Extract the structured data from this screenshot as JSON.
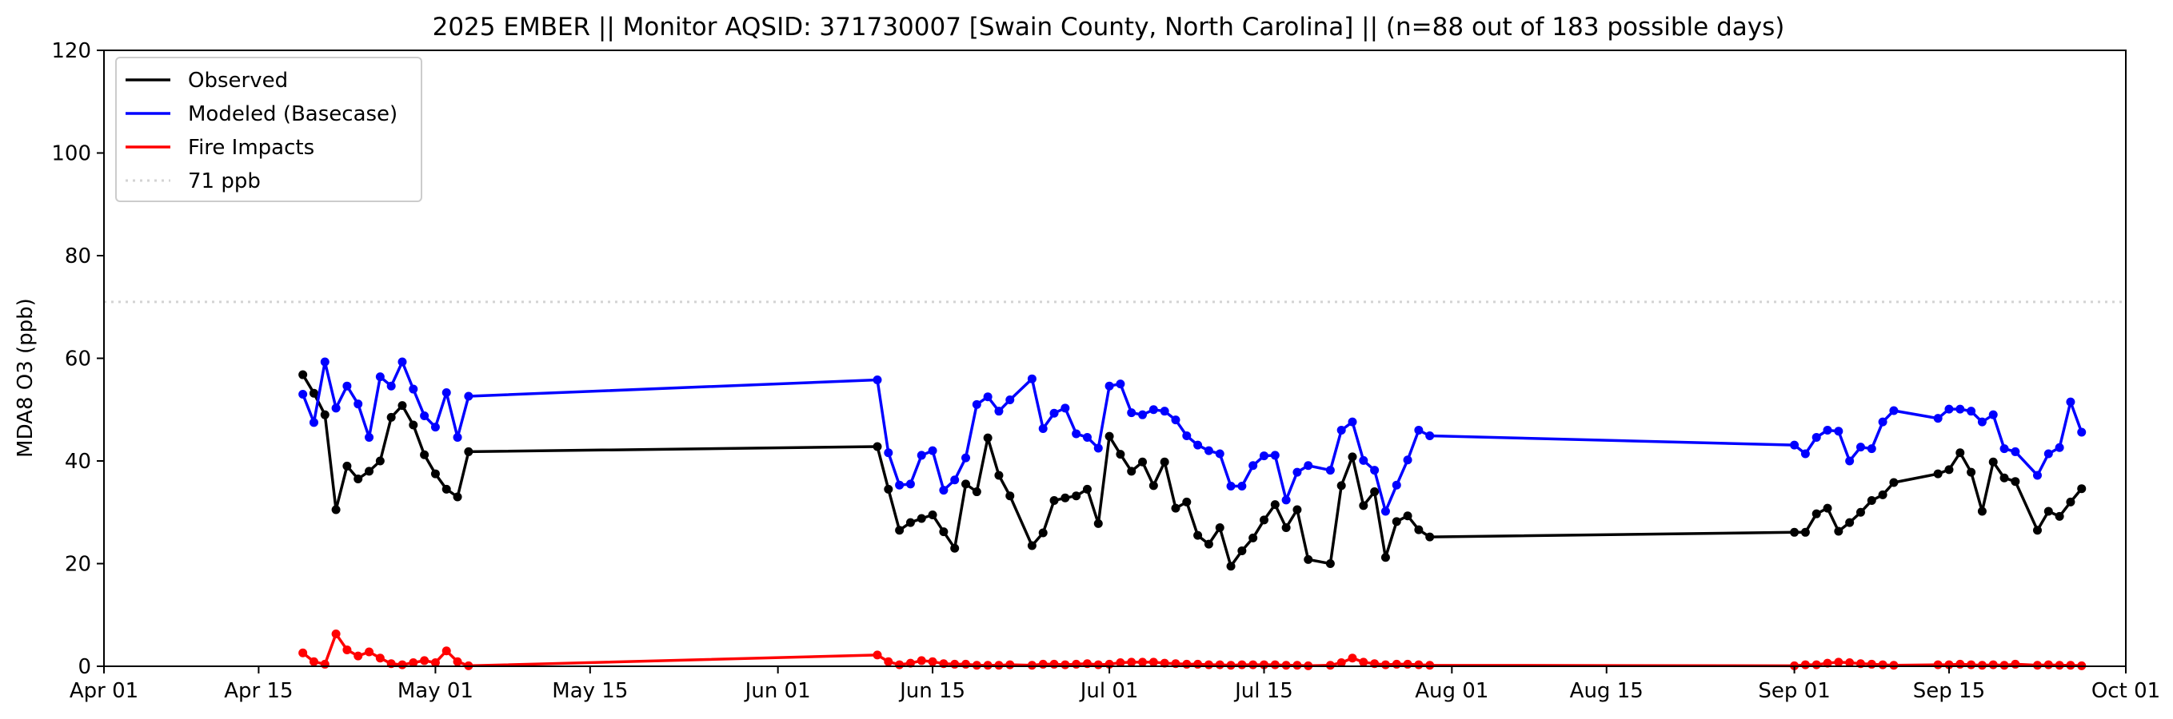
{
  "chart_data": {
    "type": "line",
    "title": "2025 EMBER || Monitor AQSID: 371730007 [Swain County, North Carolina] || (n=88 out of 183 possible days)",
    "xlabel": "",
    "ylabel": "MDA8 O3 (ppb)",
    "xlim": [
      "2025-04-01",
      "2025-10-01"
    ],
    "ylim": [
      0,
      120
    ],
    "x_tick_labels": [
      "Apr 01",
      "Apr 15",
      "May 01",
      "May 15",
      "Jun 01",
      "Jun 15",
      "Jul 01",
      "Jul 15",
      "Aug 01",
      "Aug 15",
      "Sep 01",
      "Sep 15",
      "Oct 01"
    ],
    "x_tick_dates": [
      "2025-04-01",
      "2025-04-15",
      "2025-05-01",
      "2025-05-15",
      "2025-06-01",
      "2025-06-15",
      "2025-07-01",
      "2025-07-15",
      "2025-08-01",
      "2025-08-15",
      "2025-09-01",
      "2025-09-15",
      "2025-10-01"
    ],
    "y_ticks": [
      0,
      20,
      40,
      60,
      80,
      100,
      120
    ],
    "grid": false,
    "legend_position": "top-left",
    "reference_line": {
      "y": 71,
      "label": "71 ppb",
      "color": "#d3d3d3",
      "style": "dotted"
    },
    "series": [
      {
        "name": "Observed",
        "color": "#000000",
        "points": [
          [
            "2025-04-19",
            56.8
          ],
          [
            "2025-04-20",
            53.2
          ],
          [
            "2025-04-21",
            49.0
          ],
          [
            "2025-04-22",
            30.5
          ],
          [
            "2025-04-23",
            39.0
          ],
          [
            "2025-04-24",
            36.5
          ],
          [
            "2025-04-25",
            38.0
          ],
          [
            "2025-04-26",
            40.0
          ],
          [
            "2025-04-27",
            48.5
          ],
          [
            "2025-04-28",
            50.8
          ],
          [
            "2025-04-29",
            47.0
          ],
          [
            "2025-04-30",
            41.2
          ],
          [
            "2025-05-01",
            37.5
          ],
          [
            "2025-05-02",
            34.5
          ],
          [
            "2025-05-03",
            33.0
          ],
          [
            "2025-05-04",
            41.8
          ],
          [
            "2025-06-10",
            42.8
          ],
          [
            "2025-06-11",
            34.5
          ],
          [
            "2025-06-12",
            26.5
          ],
          [
            "2025-06-13",
            28.0
          ],
          [
            "2025-06-14",
            28.8
          ],
          [
            "2025-06-15",
            29.5
          ],
          [
            "2025-06-16",
            26.2
          ],
          [
            "2025-06-17",
            23.0
          ],
          [
            "2025-06-18",
            35.5
          ],
          [
            "2025-06-19",
            34.0
          ],
          [
            "2025-06-20",
            44.5
          ],
          [
            "2025-06-21",
            37.2
          ],
          [
            "2025-06-22",
            33.2
          ],
          [
            "2025-06-24",
            23.5
          ],
          [
            "2025-06-25",
            26.0
          ],
          [
            "2025-06-26",
            32.3
          ],
          [
            "2025-06-27",
            32.8
          ],
          [
            "2025-06-28",
            33.2
          ],
          [
            "2025-06-29",
            34.5
          ],
          [
            "2025-06-30",
            27.8
          ],
          [
            "2025-07-01",
            44.8
          ],
          [
            "2025-07-02",
            41.3
          ],
          [
            "2025-07-03",
            38.0
          ],
          [
            "2025-07-04",
            39.8
          ],
          [
            "2025-07-05",
            35.2
          ],
          [
            "2025-07-06",
            39.8
          ],
          [
            "2025-07-07",
            30.8
          ],
          [
            "2025-07-08",
            32.0
          ],
          [
            "2025-07-09",
            25.5
          ],
          [
            "2025-07-10",
            23.8
          ],
          [
            "2025-07-11",
            27.0
          ],
          [
            "2025-07-12",
            19.5
          ],
          [
            "2025-07-13",
            22.5
          ],
          [
            "2025-07-14",
            25.0
          ],
          [
            "2025-07-15",
            28.5
          ],
          [
            "2025-07-16",
            31.5
          ],
          [
            "2025-07-17",
            27.0
          ],
          [
            "2025-07-18",
            30.5
          ],
          [
            "2025-07-19",
            20.8
          ],
          [
            "2025-07-21",
            20.0
          ],
          [
            "2025-07-22",
            35.2
          ],
          [
            "2025-07-23",
            40.8
          ],
          [
            "2025-07-24",
            31.3
          ],
          [
            "2025-07-25",
            34.0
          ],
          [
            "2025-07-26",
            21.2
          ],
          [
            "2025-07-27",
            28.2
          ],
          [
            "2025-07-28",
            29.3
          ],
          [
            "2025-07-29",
            26.6
          ],
          [
            "2025-07-30",
            25.2
          ],
          [
            "2025-09-01",
            26.1
          ],
          [
            "2025-09-02",
            26.1
          ],
          [
            "2025-09-03",
            29.7
          ],
          [
            "2025-09-04",
            30.8
          ],
          [
            "2025-09-05",
            26.3
          ],
          [
            "2025-09-06",
            28.0
          ],
          [
            "2025-09-07",
            30.0
          ],
          [
            "2025-09-08",
            32.3
          ],
          [
            "2025-09-09",
            33.4
          ],
          [
            "2025-09-10",
            35.8
          ],
          [
            "2025-09-14",
            37.5
          ],
          [
            "2025-09-15",
            38.3
          ],
          [
            "2025-09-16",
            41.6
          ],
          [
            "2025-09-17",
            37.8
          ],
          [
            "2025-09-18",
            30.2
          ],
          [
            "2025-09-19",
            39.8
          ],
          [
            "2025-09-20",
            36.7
          ],
          [
            "2025-09-21",
            36.0
          ],
          [
            "2025-09-23",
            26.5
          ],
          [
            "2025-09-24",
            30.2
          ],
          [
            "2025-09-25",
            29.2
          ],
          [
            "2025-09-26",
            32.0
          ],
          [
            "2025-09-27",
            34.6
          ]
        ]
      },
      {
        "name": "Modeled (Basecase)",
        "color": "#0000ff",
        "points": [
          [
            "2025-04-19",
            53.0
          ],
          [
            "2025-04-20",
            47.5
          ],
          [
            "2025-04-21",
            59.3
          ],
          [
            "2025-04-22",
            50.3
          ],
          [
            "2025-04-23",
            54.6
          ],
          [
            "2025-04-24",
            51.1
          ],
          [
            "2025-04-25",
            44.6
          ],
          [
            "2025-04-26",
            56.4
          ],
          [
            "2025-04-27",
            54.6
          ],
          [
            "2025-04-28",
            59.3
          ],
          [
            "2025-04-29",
            54.0
          ],
          [
            "2025-04-30",
            48.8
          ],
          [
            "2025-05-01",
            46.6
          ],
          [
            "2025-05-02",
            53.3
          ],
          [
            "2025-05-03",
            44.6
          ],
          [
            "2025-05-04",
            52.6
          ],
          [
            "2025-06-10",
            55.8
          ],
          [
            "2025-06-11",
            41.6
          ],
          [
            "2025-06-12",
            35.3
          ],
          [
            "2025-06-13",
            35.5
          ],
          [
            "2025-06-14",
            41.1
          ],
          [
            "2025-06-15",
            42.0
          ],
          [
            "2025-06-16",
            34.3
          ],
          [
            "2025-06-17",
            36.3
          ],
          [
            "2025-06-18",
            40.6
          ],
          [
            "2025-06-19",
            51.0
          ],
          [
            "2025-06-20",
            52.5
          ],
          [
            "2025-06-21",
            49.7
          ],
          [
            "2025-06-22",
            51.9
          ],
          [
            "2025-06-24",
            56.0
          ],
          [
            "2025-06-25",
            46.3
          ],
          [
            "2025-06-26",
            49.3
          ],
          [
            "2025-06-27",
            50.3
          ],
          [
            "2025-06-28",
            45.3
          ],
          [
            "2025-06-29",
            44.6
          ],
          [
            "2025-06-30",
            42.5
          ],
          [
            "2025-07-01",
            54.6
          ],
          [
            "2025-07-02",
            55.0
          ],
          [
            "2025-07-03",
            49.4
          ],
          [
            "2025-07-04",
            49.0
          ],
          [
            "2025-07-05",
            50.0
          ],
          [
            "2025-07-06",
            49.7
          ],
          [
            "2025-07-07",
            48.0
          ],
          [
            "2025-07-08",
            44.9
          ],
          [
            "2025-07-09",
            43.1
          ],
          [
            "2025-07-10",
            42.0
          ],
          [
            "2025-07-11",
            41.4
          ],
          [
            "2025-07-12",
            35.1
          ],
          [
            "2025-07-13",
            35.1
          ],
          [
            "2025-07-14",
            39.1
          ],
          [
            "2025-07-15",
            41.0
          ],
          [
            "2025-07-16",
            41.1
          ],
          [
            "2025-07-17",
            32.4
          ],
          [
            "2025-07-18",
            37.8
          ],
          [
            "2025-07-19",
            39.1
          ],
          [
            "2025-07-21",
            38.2
          ],
          [
            "2025-07-22",
            46.0
          ],
          [
            "2025-07-23",
            47.6
          ],
          [
            "2025-07-24",
            40.1
          ],
          [
            "2025-07-25",
            38.2
          ],
          [
            "2025-07-26",
            30.2
          ],
          [
            "2025-07-27",
            35.3
          ],
          [
            "2025-07-28",
            40.2
          ],
          [
            "2025-07-29",
            46.0
          ],
          [
            "2025-07-30",
            44.9
          ],
          [
            "2025-09-01",
            43.1
          ],
          [
            "2025-09-02",
            41.4
          ],
          [
            "2025-09-03",
            44.6
          ],
          [
            "2025-09-04",
            46.0
          ],
          [
            "2025-09-05",
            45.8
          ],
          [
            "2025-09-06",
            40.0
          ],
          [
            "2025-09-07",
            42.7
          ],
          [
            "2025-09-08",
            42.4
          ],
          [
            "2025-09-09",
            47.6
          ],
          [
            "2025-09-10",
            49.8
          ],
          [
            "2025-09-14",
            48.3
          ],
          [
            "2025-09-15",
            50.1
          ],
          [
            "2025-09-16",
            50.1
          ],
          [
            "2025-09-17",
            49.7
          ],
          [
            "2025-09-18",
            47.6
          ],
          [
            "2025-09-19",
            49.0
          ],
          [
            "2025-09-20",
            42.4
          ],
          [
            "2025-09-21",
            41.8
          ],
          [
            "2025-09-23",
            37.2
          ],
          [
            "2025-09-24",
            41.4
          ],
          [
            "2025-09-25",
            42.6
          ],
          [
            "2025-09-26",
            51.5
          ],
          [
            "2025-09-27",
            45.6
          ]
        ]
      },
      {
        "name": "Fire Impacts",
        "color": "#ff0000",
        "points": [
          [
            "2025-04-19",
            2.6
          ],
          [
            "2025-04-20",
            0.9
          ],
          [
            "2025-04-21",
            0.4
          ],
          [
            "2025-04-22",
            6.3
          ],
          [
            "2025-04-23",
            3.2
          ],
          [
            "2025-04-24",
            2.0
          ],
          [
            "2025-04-25",
            2.8
          ],
          [
            "2025-04-26",
            1.6
          ],
          [
            "2025-04-27",
            0.5
          ],
          [
            "2025-04-28",
            0.3
          ],
          [
            "2025-04-29",
            0.7
          ],
          [
            "2025-04-30",
            1.1
          ],
          [
            "2025-05-01",
            0.7
          ],
          [
            "2025-05-02",
            3.0
          ],
          [
            "2025-05-03",
            0.9
          ],
          [
            "2025-05-04",
            0.1
          ],
          [
            "2025-06-10",
            2.2
          ],
          [
            "2025-06-11",
            0.9
          ],
          [
            "2025-06-12",
            0.3
          ],
          [
            "2025-06-13",
            0.6
          ],
          [
            "2025-06-14",
            1.1
          ],
          [
            "2025-06-15",
            0.9
          ],
          [
            "2025-06-16",
            0.5
          ],
          [
            "2025-06-17",
            0.4
          ],
          [
            "2025-06-18",
            0.4
          ],
          [
            "2025-06-19",
            0.2
          ],
          [
            "2025-06-20",
            0.2
          ],
          [
            "2025-06-21",
            0.2
          ],
          [
            "2025-06-22",
            0.3
          ],
          [
            "2025-06-24",
            0.2
          ],
          [
            "2025-06-25",
            0.4
          ],
          [
            "2025-06-26",
            0.4
          ],
          [
            "2025-06-27",
            0.3
          ],
          [
            "2025-06-28",
            0.4
          ],
          [
            "2025-06-29",
            0.5
          ],
          [
            "2025-06-30",
            0.3
          ],
          [
            "2025-07-01",
            0.4
          ],
          [
            "2025-07-02",
            0.7
          ],
          [
            "2025-07-03",
            0.8
          ],
          [
            "2025-07-04",
            0.8
          ],
          [
            "2025-07-05",
            0.8
          ],
          [
            "2025-07-06",
            0.6
          ],
          [
            "2025-07-07",
            0.5
          ],
          [
            "2025-07-08",
            0.4
          ],
          [
            "2025-07-09",
            0.4
          ],
          [
            "2025-07-10",
            0.3
          ],
          [
            "2025-07-11",
            0.3
          ],
          [
            "2025-07-12",
            0.2
          ],
          [
            "2025-07-13",
            0.3
          ],
          [
            "2025-07-14",
            0.3
          ],
          [
            "2025-07-15",
            0.3
          ],
          [
            "2025-07-16",
            0.3
          ],
          [
            "2025-07-17",
            0.2
          ],
          [
            "2025-07-18",
            0.2
          ],
          [
            "2025-07-19",
            0.1
          ],
          [
            "2025-07-21",
            0.2
          ],
          [
            "2025-07-22",
            0.7
          ],
          [
            "2025-07-23",
            1.6
          ],
          [
            "2025-07-24",
            0.8
          ],
          [
            "2025-07-25",
            0.5
          ],
          [
            "2025-07-26",
            0.3
          ],
          [
            "2025-07-27",
            0.4
          ],
          [
            "2025-07-28",
            0.4
          ],
          [
            "2025-07-29",
            0.3
          ],
          [
            "2025-07-30",
            0.2
          ],
          [
            "2025-09-01",
            0.1
          ],
          [
            "2025-09-02",
            0.3
          ],
          [
            "2025-09-03",
            0.3
          ],
          [
            "2025-09-04",
            0.6
          ],
          [
            "2025-09-05",
            0.8
          ],
          [
            "2025-09-06",
            0.7
          ],
          [
            "2025-09-07",
            0.5
          ],
          [
            "2025-09-08",
            0.4
          ],
          [
            "2025-09-09",
            0.3
          ],
          [
            "2025-09-10",
            0.2
          ],
          [
            "2025-09-14",
            0.3
          ],
          [
            "2025-09-15",
            0.3
          ],
          [
            "2025-09-16",
            0.4
          ],
          [
            "2025-09-17",
            0.3
          ],
          [
            "2025-09-18",
            0.2
          ],
          [
            "2025-09-19",
            0.3
          ],
          [
            "2025-09-20",
            0.2
          ],
          [
            "2025-09-21",
            0.4
          ],
          [
            "2025-09-23",
            0.2
          ],
          [
            "2025-09-24",
            0.3
          ],
          [
            "2025-09-25",
            0.2
          ],
          [
            "2025-09-26",
            0.2
          ],
          [
            "2025-09-27",
            0.1
          ]
        ]
      }
    ]
  }
}
